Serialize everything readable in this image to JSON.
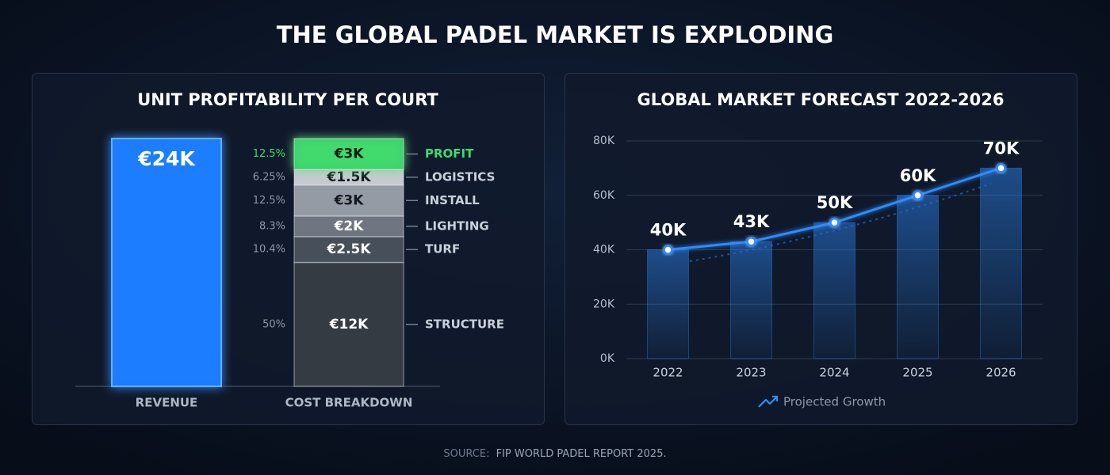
{
  "title": "THE GLOBAL PADEL MARKET IS EXPLODING",
  "source_label": "SOURCE:",
  "source": "FIP WORLD PADEL REPORT 2025.",
  "chart_data": [
    {
      "type": "stacked_bar",
      "title": "UNIT PROFITABILITY PER COURT",
      "categories": [
        "REVENUE",
        "COST BREAKDOWN"
      ],
      "series": [
        {
          "color": "#1a7dff",
          "values": [
            24,
            null
          ],
          "value_labels": [
            "€24K",
            null
          ]
        },
        {
          "name": "STRUCTURE",
          "color": "#3a3f46",
          "values": [
            null,
            12
          ],
          "value_labels": [
            null,
            "€12K"
          ],
          "share": {
            "value": 50,
            "label": "50%"
          }
        },
        {
          "name": "TURF",
          "color": "#4e555f",
          "values": [
            null,
            2.5
          ],
          "value_labels": [
            null,
            "€2.5K"
          ],
          "share": {
            "value": 10.4,
            "label": "10.4%"
          }
        },
        {
          "name": "LIGHTING",
          "color": "#7a818b",
          "values": [
            null,
            2
          ],
          "value_labels": [
            null,
            "€2K"
          ],
          "share": {
            "value": 8.3,
            "label": "8.3%"
          }
        },
        {
          "name": "INSTALL",
          "color": "#a4aab2",
          "values": [
            null,
            3
          ],
          "value_labels": [
            null,
            "€3K"
          ],
          "share": {
            "value": 12.5,
            "label": "12.5%"
          }
        },
        {
          "name": "LOGISTICS",
          "color": "#d9dde2",
          "values": [
            null,
            1.5
          ],
          "value_labels": [
            null,
            "€1.5K"
          ],
          "share": {
            "value": 6.25,
            "label": "6.25%"
          }
        },
        {
          "name": "PROFIT",
          "color": "#3fdc6e",
          "values": [
            null,
            3
          ],
          "value_labels": [
            null,
            "€3K"
          ],
          "share": {
            "value": 12.5,
            "label": "12.5%"
          },
          "highlight": true
        }
      ]
    },
    {
      "type": "bar_line",
      "title": "GLOBAL MARKET FORECAST 2022-2026",
      "categories": [
        "2022",
        "2023",
        "2024",
        "2025",
        "2026"
      ],
      "series": [
        {
          "name": "Projected Growth",
          "color": "#2f8cff",
          "values": [
            40,
            43,
            50,
            60,
            70
          ],
          "value_labels": [
            "40K",
            "43K",
            "50K",
            "60K",
            "70K"
          ]
        }
      ],
      "ylim": [
        0,
        80
      ],
      "yticks": [
        {
          "value": 0,
          "label": "0K"
        },
        {
          "value": 20,
          "label": "20K"
        },
        {
          "value": 40,
          "label": "40K"
        },
        {
          "value": 60,
          "label": "60K"
        },
        {
          "value": 80,
          "label": "80K"
        }
      ],
      "grid": true
    }
  ]
}
